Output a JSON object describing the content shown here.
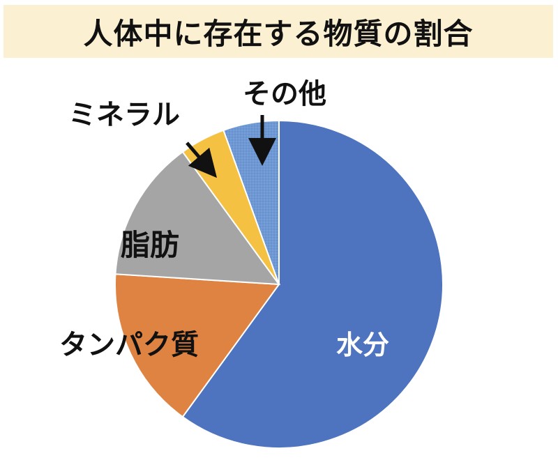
{
  "title": "人体中に存在する物質の割合",
  "colors": {
    "title_background": "#fbf1d2",
    "slice_border": "#ffffff"
  },
  "chart_data": {
    "type": "pie",
    "title": "人体中に存在する物質の割合",
    "start_angle_deg": 0,
    "direction": "clockwise",
    "slices": [
      {
        "label": "水分",
        "value": 60,
        "color": "#4e74bf",
        "label_color": "#ffffff",
        "pattern": "none"
      },
      {
        "label": "タンパク質",
        "value": 16,
        "color": "#df8342",
        "label_color": "#111111",
        "pattern": "none"
      },
      {
        "label": "脂肪",
        "value": 14,
        "color": "#a5a5a5",
        "label_color": "#111111",
        "pattern": "none"
      },
      {
        "label": "ミネラル",
        "value": 4.5,
        "color": "#f5c143",
        "label_color": "#111111",
        "pattern": "none"
      },
      {
        "label": "その他",
        "value": 5.5,
        "color": "#6f99d4",
        "label_color": "#111111",
        "pattern": "dots"
      }
    ]
  }
}
